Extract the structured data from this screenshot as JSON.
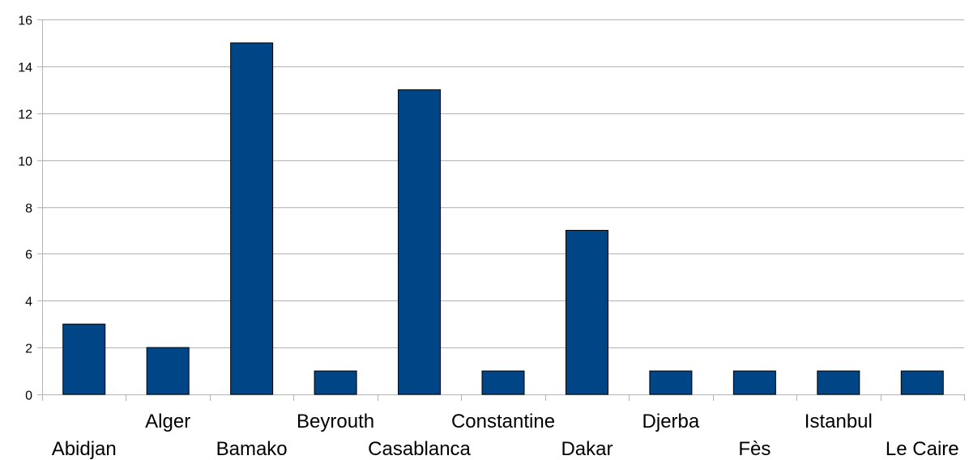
{
  "chart_data": {
    "type": "bar",
    "title": "",
    "xlabel": "",
    "ylabel": "",
    "categories": [
      "Abidjan",
      "Alger",
      "Bamako",
      "Beyrouth",
      "Casablanca",
      "Constantine",
      "Dakar",
      "Djerba",
      "Fès",
      "Istanbul",
      "Le Caire"
    ],
    "values": [
      3,
      2,
      15,
      1,
      13,
      1,
      7,
      1,
      1,
      1,
      1
    ],
    "ylim": [
      0,
      16
    ],
    "yticks": [
      0,
      2,
      4,
      6,
      8,
      10,
      12,
      14,
      16
    ],
    "grid": true,
    "legend": "none",
    "colors": {
      "bar": "#004586",
      "bar_outline": "#000000",
      "grid": "#b3b3b3"
    }
  }
}
